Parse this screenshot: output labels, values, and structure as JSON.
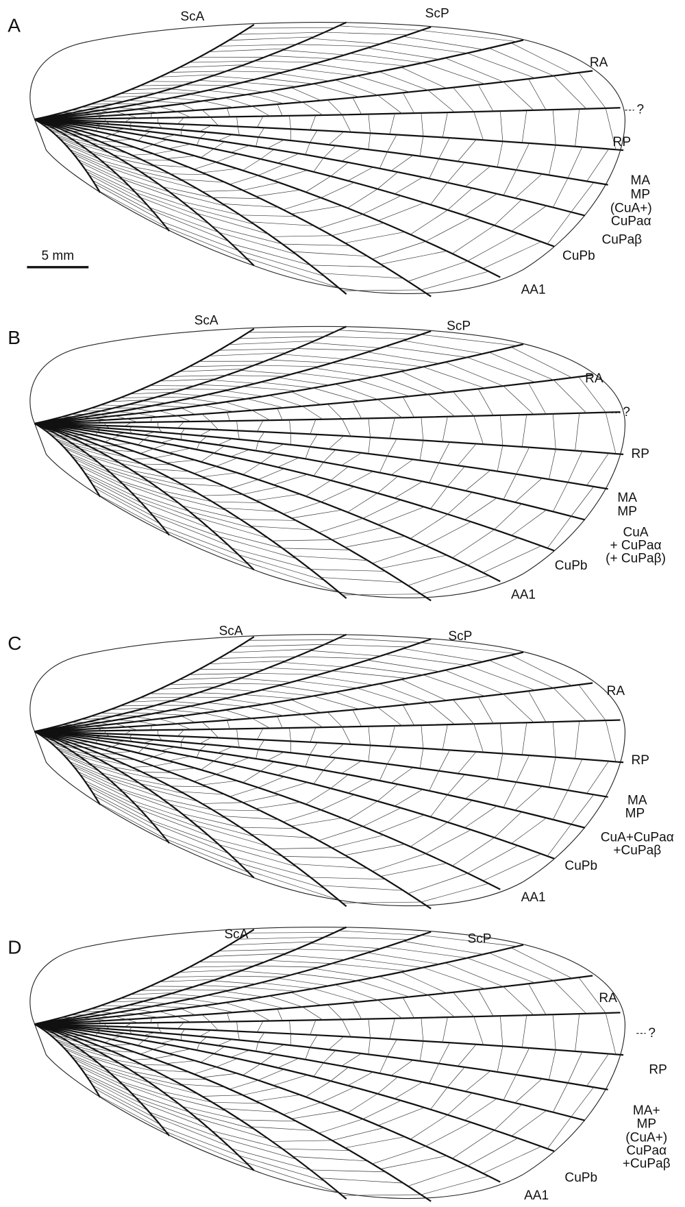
{
  "panels": [
    {
      "label": "A",
      "labels": [
        [
          "ScA"
        ],
        [
          "ScP"
        ],
        [
          "RA"
        ],
        [
          "?"
        ],
        [
          "RP"
        ],
        [
          "MA"
        ],
        [
          "MP"
        ],
        [
          "(CuA+)",
          "CuPaα"
        ],
        [
          "CuPaβ"
        ],
        [
          "CuPb"
        ],
        [
          "AA1"
        ]
      ]
    },
    {
      "label": "B",
      "labels": [
        [
          "ScA"
        ],
        [
          "ScP"
        ],
        [
          "RA"
        ],
        [
          "?"
        ],
        [
          "RP"
        ],
        [
          "MA"
        ],
        [
          "MP"
        ],
        [
          "CuA",
          "+ CuPaα",
          "(+ CuPaβ)"
        ],
        [
          "CuPb"
        ],
        [
          "AA1"
        ]
      ]
    },
    {
      "label": "C",
      "labels": [
        [
          "ScA"
        ],
        [
          "ScP"
        ],
        [
          "RA"
        ],
        [
          "RP"
        ],
        [
          "MA"
        ],
        [
          "MP"
        ],
        [
          "CuA+CuPaα",
          "+CuPaβ"
        ],
        [
          "CuPb"
        ],
        [
          "AA1"
        ]
      ]
    },
    {
      "label": "D",
      "labels": [
        [
          "ScA"
        ],
        [
          "ScP"
        ],
        [
          "RA"
        ],
        [
          "?"
        ],
        [
          "RP"
        ],
        [
          "MA+",
          "MP"
        ],
        [
          "(CuA+)",
          "CuPaα",
          "+CuPaβ"
        ],
        [
          "CuPb"
        ],
        [
          "AA1"
        ]
      ]
    }
  ],
  "scale_bar": "5 mm"
}
